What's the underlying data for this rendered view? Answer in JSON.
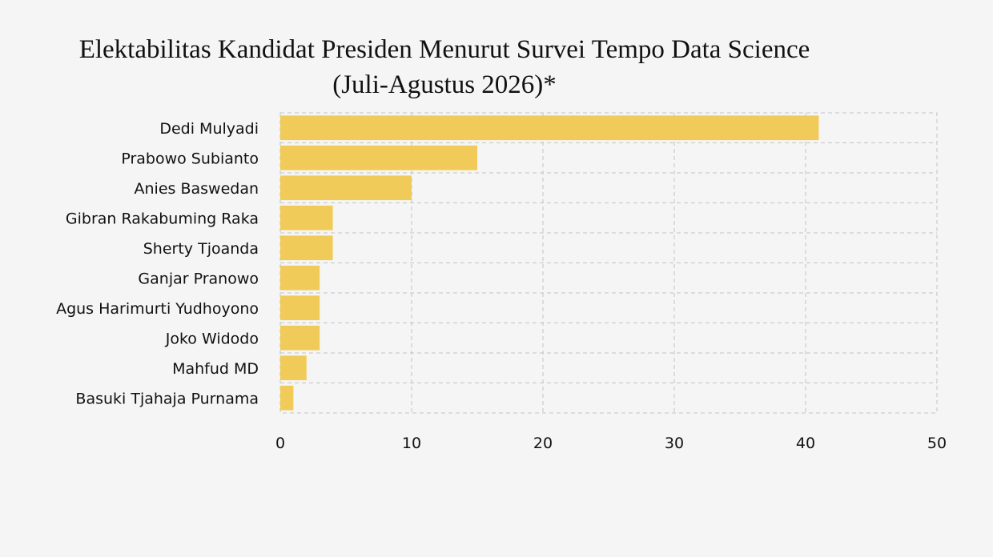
{
  "chart_data": {
    "type": "bar",
    "orientation": "horizontal",
    "title_line1": "Elektabilitas Kandidat Presiden Menurut Survei Tempo Data Science",
    "title_line2": "(Juli-Agustus 2026)*",
    "xlabel": "",
    "ylabel": "",
    "xlim": [
      0,
      50
    ],
    "xticks": [
      0,
      10,
      20,
      30,
      40,
      50
    ],
    "grid": true,
    "bar_color": "#f0c850",
    "categories": [
      "Dedi Mulyadi",
      "Prabowo Subianto",
      "Anies Baswedan",
      "Gibran Rakabuming Raka",
      "Sherty Tjoanda",
      "Ganjar Pranowo",
      "Agus Harimurti Yudhoyono",
      "Joko Widodo",
      "Mahfud MD",
      "Basuki Tjahaja Purnama"
    ],
    "values": [
      41,
      15,
      10,
      4,
      4,
      3,
      3,
      3,
      2,
      1
    ]
  }
}
